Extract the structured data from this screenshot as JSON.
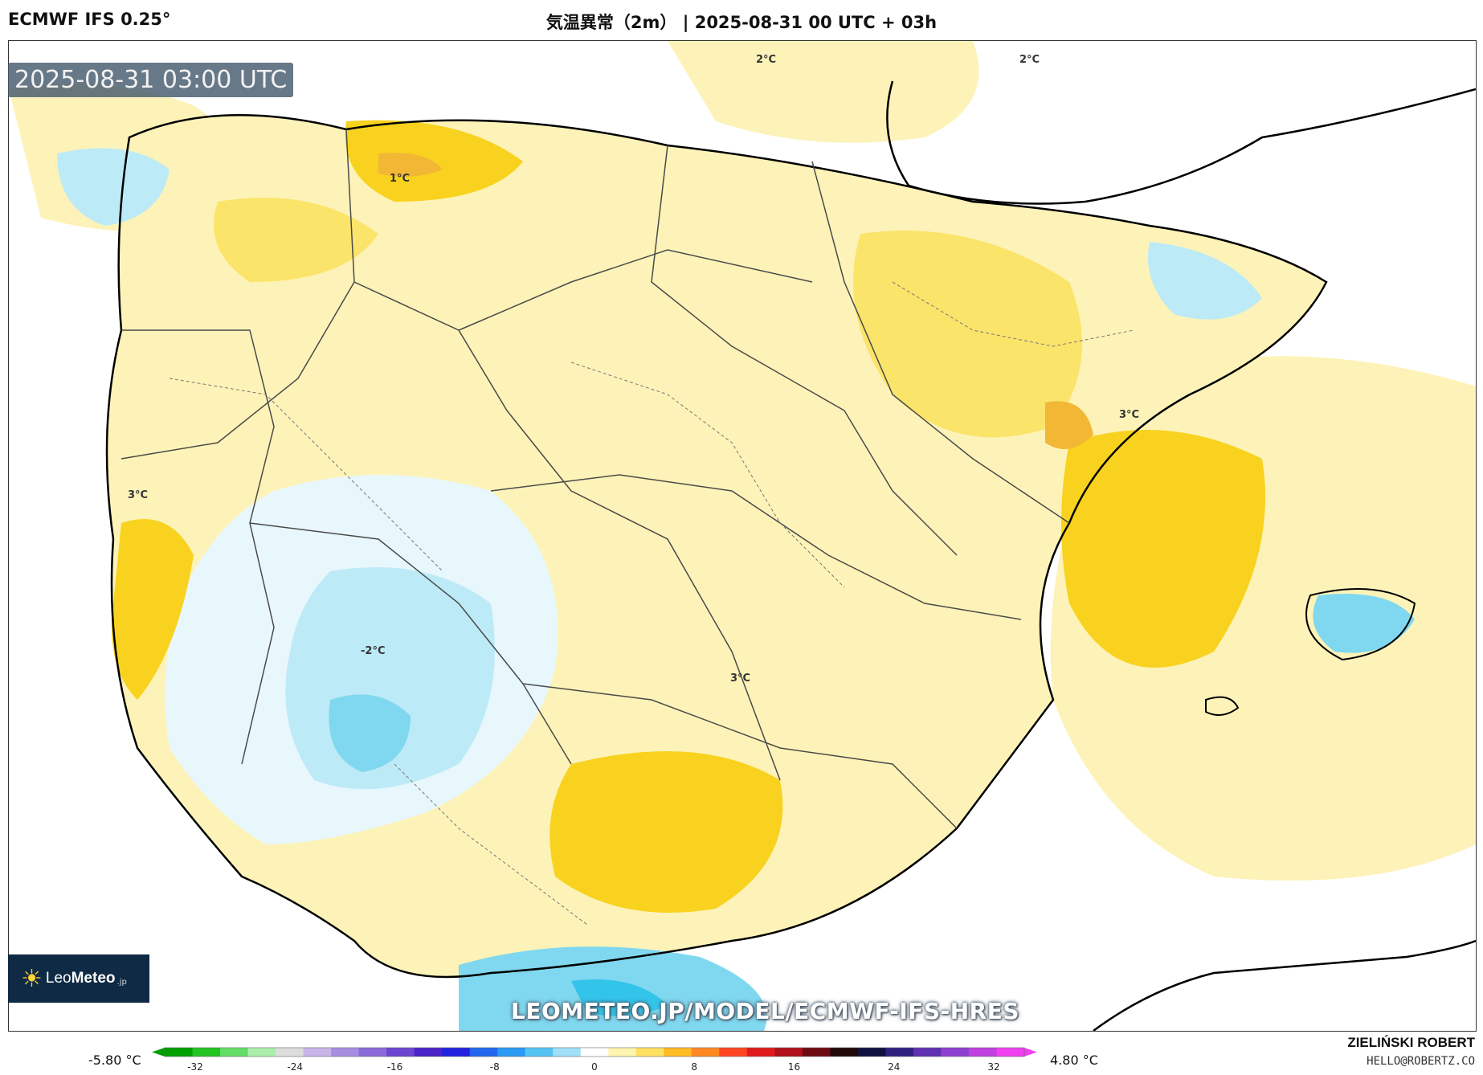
{
  "header": {
    "model": "ECMWF IFS 0.25°",
    "title": "気温異常（2m） | 2025-08-31 00 UTC + 03h"
  },
  "map": {
    "timestamp": "2025-08-31 03:00 UTC",
    "watermark": "LEOMETEO.JP/MODEL/ECMWF-IFS-HRES",
    "contour_labels": [
      "2°C",
      "2°C",
      "1°C",
      "3°C",
      "3°C",
      "-2°C",
      "3°C"
    ],
    "colors": {
      "sea_background": "#ffffff",
      "anomaly_plus1": "#fdf3b8",
      "anomaly_plus2": "#fbe46a",
      "anomaly_plus3": "#f8d21e",
      "anomaly_plus4": "#f2b735",
      "anomaly_minus1": "#e8f7fc",
      "anomaly_minus2": "#bdeaf7",
      "anomaly_minus3": "#7fd8ef",
      "anomaly_minus4": "#33c4ea",
      "coastline": "#000000",
      "borders": "#4a4a4a"
    }
  },
  "logo": {
    "icon": "sun-icon",
    "name_light": "Leo",
    "name_bold": "Meteo",
    "suffix": ".jp"
  },
  "legend": {
    "min_label": "-5.80 °C",
    "max_label": "4.80 °C",
    "ticks": [
      "-32",
      "-24",
      "-16",
      "-8",
      "0",
      "8",
      "16",
      "24",
      "32"
    ],
    "colors": [
      "#00a000",
      "#22c422",
      "#66dd66",
      "#aaeeaa",
      "#dddddd",
      "#c8b4e8",
      "#a88ee0",
      "#8a6ad8",
      "#6a46d0",
      "#4a22c8",
      "#2222e0",
      "#2266f0",
      "#2a9af5",
      "#55c4f5",
      "#9fe0f8",
      "#ffffff",
      "#fff5b0",
      "#ffe060",
      "#ffbb22",
      "#ff8822",
      "#ff4422",
      "#e01a1a",
      "#b0101a",
      "#700a12",
      "#200808",
      "#101040",
      "#302080",
      "#6030b0",
      "#9040d0",
      "#c040e0",
      "#f040f0"
    ]
  },
  "credits": {
    "name": "ZIELIŃSKI ROBERT",
    "email": "HELLO@ROBERTZ.CO"
  }
}
